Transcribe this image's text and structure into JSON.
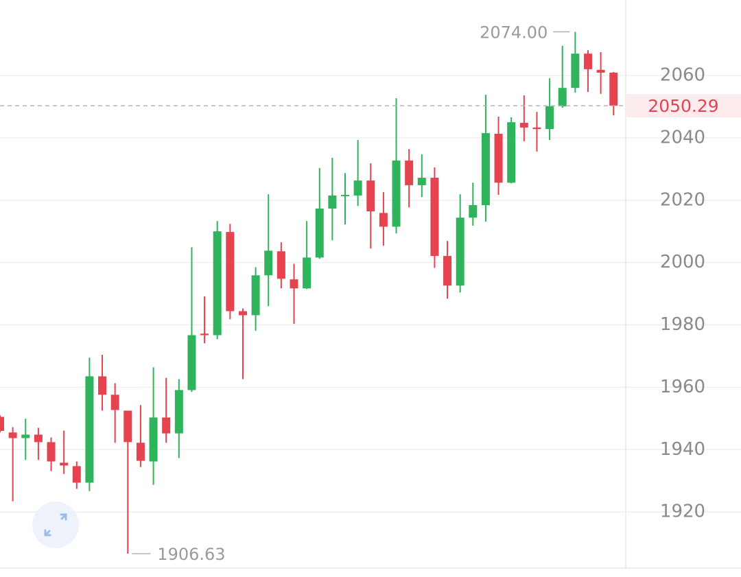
{
  "chart_data": {
    "type": "candlestick",
    "up_color": "#2fb35c",
    "down_color": "#e5434f",
    "ylim": [
      1902,
      2084.2
    ],
    "yticks": [
      1920,
      1940,
      1960,
      1980,
      2000,
      2020,
      2040,
      2060
    ],
    "grid": true,
    "open": [
      1950.5,
      1945.5,
      1943.7,
      1944.8,
      1942.4,
      1935.8,
      1934.7,
      1929.4,
      1963.5,
      1957.6,
      1952.5,
      1942.2,
      1936.2,
      1950.3,
      1945.2,
      1959.1,
      1977.2,
      1976.7,
      2009.8,
      1984.4,
      1983.1,
      1995.9,
      2003.6,
      1994.6,
      1991.7,
      2001.6,
      2017.3,
      2021.5,
      2021.5,
      2026.3,
      2015.9,
      2011.5,
      2032.7,
      2024.8,
      2027.2,
      2002.1,
      1992.6,
      2014.4,
      2018.4,
      2041.3,
      2025.6,
      2044.8,
      2043.3,
      2042.8,
      2050.1,
      2056.0,
      2067.0,
      2061.8,
      2060.9
    ],
    "high": [
      1951,
      1947.2,
      1949.9,
      1947.0,
      1943.9,
      1946.1,
      1936.2,
      1969.5,
      1970.4,
      1961.3,
      1952.5,
      1954.3,
      1966.4,
      1963.0,
      1962.6,
      2004.9,
      1989.1,
      2013.3,
      2012.4,
      1985.3,
      1998.5,
      2021.9,
      2006.5,
      1999.6,
      2013.3,
      2030.3,
      2033.6,
      2028.7,
      2039.3,
      2031.8,
      2022.6,
      2052.7,
      2036.4,
      2034.7,
      2030.5,
      2006.9,
      2021.9,
      2025.6,
      2053.8,
      2046.8,
      2046.6,
      2053.6,
      2048.3,
      2059.1,
      2069.5,
      2074.0,
      2068.1,
      2067.5,
      2061.1
    ],
    "low": [
      1945.5,
      1923.4,
      1936.7,
      1936.7,
      1933.1,
      1932.2,
      1927.4,
      1926.7,
      1952.5,
      1942.2,
      1906.63,
      1934.4,
      1928.7,
      1942.2,
      1937.3,
      1958.5,
      1974.1,
      1975.4,
      1981.8,
      1962.6,
      1978.1,
      1986.0,
      1991.7,
      1980.3,
      1991.5,
      2001.2,
      2007.1,
      2012.2,
      2018.1,
      2004.5,
      2005.4,
      2009.3,
      2017.7,
      2021.0,
      1998.3,
      1988.4,
      1990.4,
      2011.8,
      2013.1,
      2021.7,
      2025.4,
      2038.9,
      2035.6,
      2039.3,
      2049.6,
      2054.5,
      2054.7,
      2054.1,
      2047.2
    ],
    "close": [
      1946,
      1943.7,
      1944.8,
      1942.4,
      1936.2,
      1934.9,
      1929.4,
      1963.5,
      1957.6,
      1952.7,
      1942.4,
      1936.4,
      1950.3,
      1945.2,
      1959.1,
      1976.7,
      1976.7,
      2010.0,
      1984.4,
      1983.1,
      1995.9,
      2003.8,
      1994.8,
      1991.7,
      2001.6,
      2017.3,
      2021.5,
      2021.7,
      2026.3,
      2016.4,
      2011.5,
      2032.7,
      2024.8,
      2027.2,
      2002.1,
      1992.6,
      2014.4,
      2018.4,
      2041.5,
      2025.6,
      2045.0,
      2043.3,
      2042.8,
      2050.1,
      2056.0,
      2067.0,
      2062.0,
      2060.9,
      2050.29
    ],
    "high_label": {
      "value": 2074.0,
      "label": "2074.00"
    },
    "low_label": {
      "value": 1906.63,
      "label": "1906.63"
    },
    "last_price": {
      "value": 2050.29,
      "label": "2050.29"
    }
  }
}
